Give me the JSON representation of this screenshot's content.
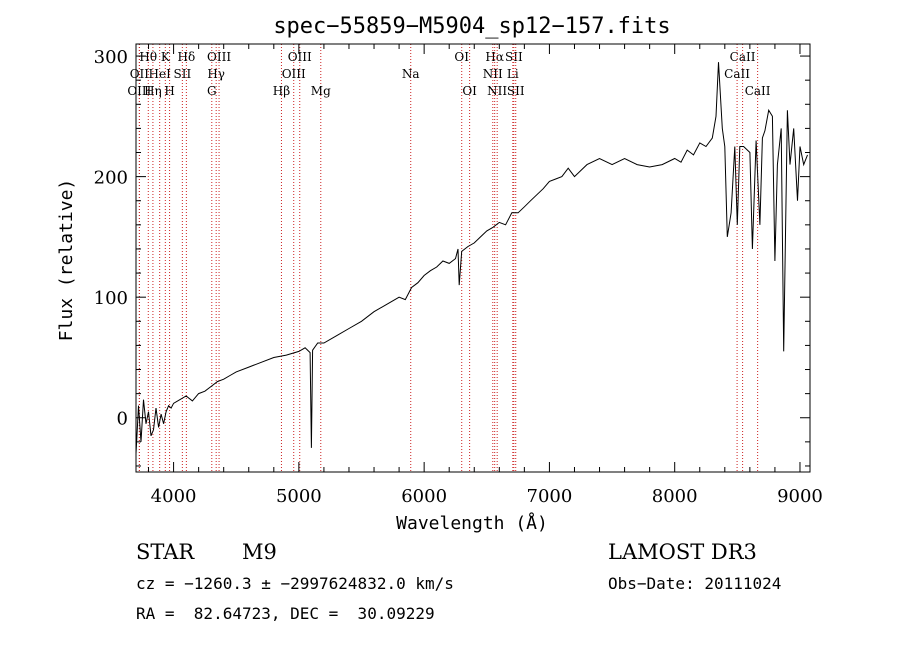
{
  "chart_data": {
    "type": "line",
    "title": "spec−55859−M5904_sp12−157.fits",
    "xlabel": "Wavelength (Å)",
    "ylabel": "Flux (relative)",
    "xlim": [
      3700,
      9080
    ],
    "ylim": [
      -45,
      310
    ],
    "xticks": [
      4000,
      5000,
      6000,
      7000,
      8000,
      9000
    ],
    "yticks": [
      0,
      100,
      200,
      300
    ],
    "series": [
      {
        "name": "flux",
        "x": [
          3700,
          3720,
          3740,
          3760,
          3780,
          3800,
          3820,
          3840,
          3860,
          3880,
          3900,
          3920,
          3940,
          3960,
          3980,
          4000,
          4050,
          4100,
          4150,
          4200,
          4250,
          4300,
          4350,
          4400,
          4450,
          4500,
          4600,
          4700,
          4800,
          4900,
          5000,
          5050,
          5090,
          5100,
          5110,
          5150,
          5200,
          5300,
          5400,
          5500,
          5600,
          5700,
          5800,
          5850,
          5900,
          5950,
          6000,
          6050,
          6100,
          6150,
          6200,
          6250,
          6270,
          6280,
          6300,
          6350,
          6400,
          6450,
          6500,
          6550,
          6600,
          6650,
          6700,
          6750,
          6800,
          6850,
          6900,
          6950,
          7000,
          7050,
          7100,
          7150,
          7200,
          7250,
          7300,
          7400,
          7500,
          7600,
          7700,
          7800,
          7900,
          8000,
          8050,
          8100,
          8150,
          8200,
          8250,
          8300,
          8330,
          8350,
          8380,
          8400,
          8420,
          8450,
          8480,
          8500,
          8520,
          8550,
          8600,
          8620,
          8650,
          8680,
          8700,
          8720,
          8750,
          8780,
          8800,
          8820,
          8850,
          8870,
          8900,
          8920,
          8950,
          8980,
          9000,
          9030,
          9060
        ],
        "y": [
          -30,
          10,
          -20,
          15,
          -5,
          5,
          -15,
          -10,
          8,
          -8,
          3,
          -5,
          5,
          10,
          8,
          12,
          15,
          18,
          14,
          20,
          22,
          26,
          30,
          32,
          35,
          38,
          42,
          46,
          50,
          52,
          55,
          58,
          54,
          -25,
          56,
          62,
          62,
          68,
          74,
          80,
          88,
          94,
          100,
          98,
          108,
          112,
          118,
          122,
          125,
          130,
          128,
          132,
          140,
          110,
          138,
          142,
          145,
          150,
          155,
          158,
          162,
          160,
          170,
          170,
          175,
          180,
          185,
          190,
          196,
          198,
          200,
          207,
          200,
          205,
          210,
          215,
          210,
          215,
          210,
          208,
          210,
          215,
          212,
          222,
          218,
          228,
          225,
          232,
          250,
          295,
          240,
          225,
          150,
          170,
          225,
          160,
          225,
          225,
          220,
          140,
          230,
          160,
          232,
          238,
          255,
          250,
          130,
          210,
          240,
          55,
          255,
          210,
          240,
          180,
          225,
          210,
          218
        ]
      }
    ],
    "spectral_lines": [
      {
        "label": "Hθ",
        "wavelength": 3798,
        "row": 1
      },
      {
        "label": "K",
        "wavelength": 3934,
        "row": 1
      },
      {
        "label": "Hδ",
        "wavelength": 4102,
        "row": 1
      },
      {
        "label": "OIII",
        "wavelength": 4363,
        "row": 1
      },
      {
        "label": "OIII",
        "wavelength": 5007,
        "row": 1
      },
      {
        "label": "OI",
        "wavelength": 6300,
        "row": 1
      },
      {
        "label": "Hα",
        "wavelength": 6563,
        "row": 1
      },
      {
        "label": "SII",
        "wavelength": 6716,
        "row": 1
      },
      {
        "label": "CaII",
        "wavelength": 8542,
        "row": 1
      },
      {
        "label": "OII",
        "wavelength": 3727,
        "row": 2
      },
      {
        "label": "HeI",
        "wavelength": 3889,
        "row": 2
      },
      {
        "label": "SII",
        "wavelength": 4070,
        "row": 2
      },
      {
        "label": "Hγ",
        "wavelength": 4340,
        "row": 2
      },
      {
        "label": "OIII",
        "wavelength": 4959,
        "row": 2
      },
      {
        "label": "Na",
        "wavelength": 5893,
        "row": 2
      },
      {
        "label": "NII",
        "wavelength": 6548,
        "row": 2
      },
      {
        "label": "Li",
        "wavelength": 6708,
        "row": 2
      },
      {
        "label": "CaII",
        "wavelength": 8498,
        "row": 2
      },
      {
        "label": "OIII",
        "wavelength": 3727,
        "row": 3
      },
      {
        "label": "Hη",
        "wavelength": 3835,
        "row": 3
      },
      {
        "label": "H",
        "wavelength": 3968,
        "row": 3
      },
      {
        "label": "G",
        "wavelength": 4305,
        "row": 3
      },
      {
        "label": "Hβ",
        "wavelength": 4861,
        "row": 3
      },
      {
        "label": "Mg",
        "wavelength": 5175,
        "row": 3
      },
      {
        "label": "OI",
        "wavelength": 6363,
        "row": 3
      },
      {
        "label": "NII",
        "wavelength": 6583,
        "row": 3
      },
      {
        "label": "SII",
        "wavelength": 6731,
        "row": 3
      },
      {
        "label": "CaII",
        "wavelength": 8662,
        "row": 3
      }
    ],
    "line_color": "#cc2222",
    "curve_color": "#000000"
  },
  "info": {
    "object_class": "STAR",
    "subclass": "M9",
    "survey": "LAMOST DR3",
    "cz": "cz = −1260.3 ± −2997624832.0 km/s",
    "obs_date": "Obs−Date: 20111024",
    "radec": "RA =  82.64723, DEC =  30.09229"
  }
}
